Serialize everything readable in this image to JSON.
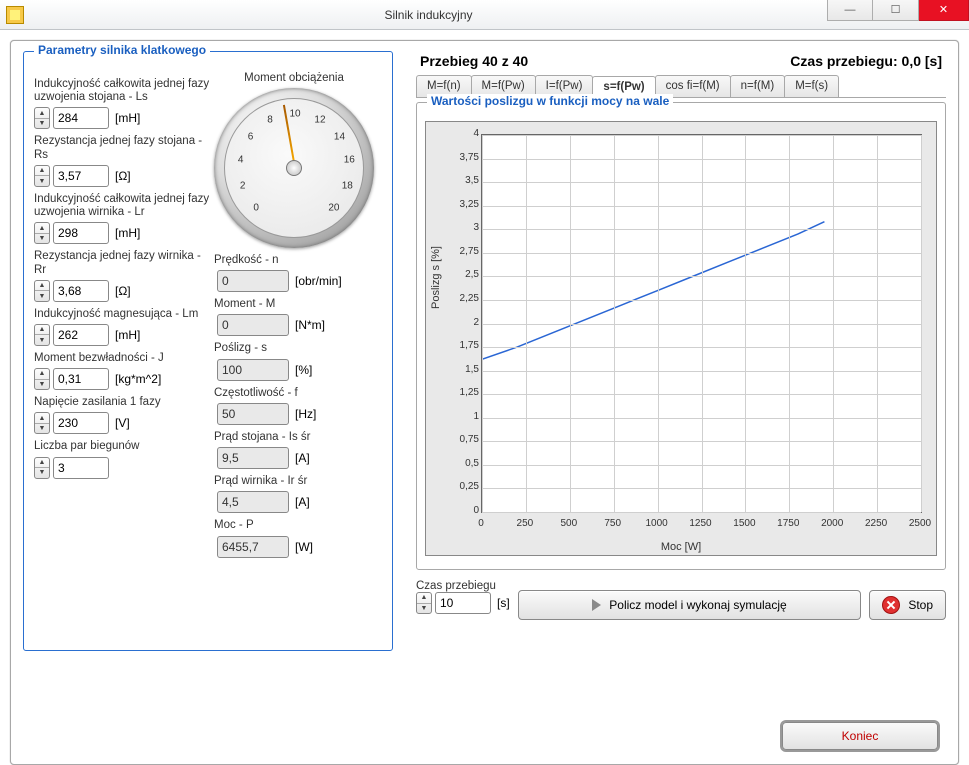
{
  "window": {
    "title": "Silnik indukcyjny",
    "minimize": "—",
    "maximize": "☐",
    "close": "✕"
  },
  "params_group_title": "Parametry silnika klatkowego",
  "left_params": [
    {
      "label": "Indukcyjność całkowita jednej fazy uzwojenia stojana - Ls",
      "value": "284",
      "unit": "[mH]"
    },
    {
      "label": "Rezystancja jednej fazy stojana - Rs",
      "value": "3,57",
      "unit": "[Ω]"
    },
    {
      "label": "Indukcyjność całkowita jednej fazy uzwojenia wirnika - Lr",
      "value": "298",
      "unit": "[mH]"
    },
    {
      "label": "Rezystancja jednej fazy wirnika - Rr",
      "value": "3,68",
      "unit": "[Ω]"
    },
    {
      "label": "Indukcyjność magnesująca - Lm",
      "value": "262",
      "unit": "[mH]"
    },
    {
      "label": "Moment bezwładności - J",
      "value": "0,31",
      "unit": "[kg*m^2]"
    },
    {
      "label": "Napięcie zasilania 1 fazy",
      "value": "230",
      "unit": "[V]"
    },
    {
      "label": "Liczba par biegunów",
      "value": "3",
      "unit": ""
    }
  ],
  "gauge": {
    "title": "Moment obciążenia",
    "ticks": [
      "0",
      "2",
      "4",
      "6",
      "8",
      "10",
      "12",
      "14",
      "16",
      "18",
      "20"
    ],
    "needle_deg": 170
  },
  "readouts": [
    {
      "label": "Prędkość - n",
      "value": "0",
      "unit": "[obr/min]"
    },
    {
      "label": "Moment - M",
      "value": "0",
      "unit": "[N*m]"
    },
    {
      "label": "Poślizg - s",
      "value": "100",
      "unit": "[%]"
    },
    {
      "label": "Częstotliwość - f",
      "value": "50",
      "unit": "[Hz]"
    },
    {
      "label": "Prąd stojana - Is śr",
      "value": "9,5",
      "unit": "[A]"
    },
    {
      "label": "Prąd wirnika - Ir śr",
      "value": "4,5",
      "unit": "[A]"
    },
    {
      "label": "Moc - P",
      "value": "6455,7",
      "unit": "[W]"
    }
  ],
  "header": {
    "left": "Przebieg 40 z 40",
    "right": "Czas przebiegu: 0,0 [s]"
  },
  "tabs": [
    "M=f(n)",
    "M=f(Pw)",
    "I=f(Pw)",
    "s=f(Pw)",
    "cos fi=f(M)",
    "n=f(M)",
    "M=f(s)"
  ],
  "active_tab_index": 3,
  "chart": {
    "title": "Wartości poslizgu w funkcji mocy na wale",
    "ylabel": "Poslizg s [%]",
    "xlabel": "Moc [W]",
    "xlim": [
      0,
      2500
    ],
    "xtick_step": 250,
    "ylim": [
      0,
      4
    ],
    "ytick_step": 0.25,
    "line_color": "#2a66d4",
    "grid_color": "#cfcfcf",
    "background_color": "#ffffff",
    "plot_bg": "#e9e9e9",
    "points": [
      [
        0,
        1.62
      ],
      [
        200,
        1.75
      ],
      [
        400,
        1.9
      ],
      [
        600,
        2.05
      ],
      [
        800,
        2.2
      ],
      [
        1000,
        2.35
      ],
      [
        1200,
        2.5
      ],
      [
        1400,
        2.65
      ],
      [
        1600,
        2.8
      ],
      [
        1800,
        2.95
      ],
      [
        1950,
        3.08
      ]
    ]
  },
  "czas": {
    "label": "Czas przebiegu",
    "value": "10",
    "unit": "[s]"
  },
  "buttons": {
    "run": "Policz model i wykonaj symulację",
    "stop": "Stop",
    "koniec": "Koniec"
  }
}
